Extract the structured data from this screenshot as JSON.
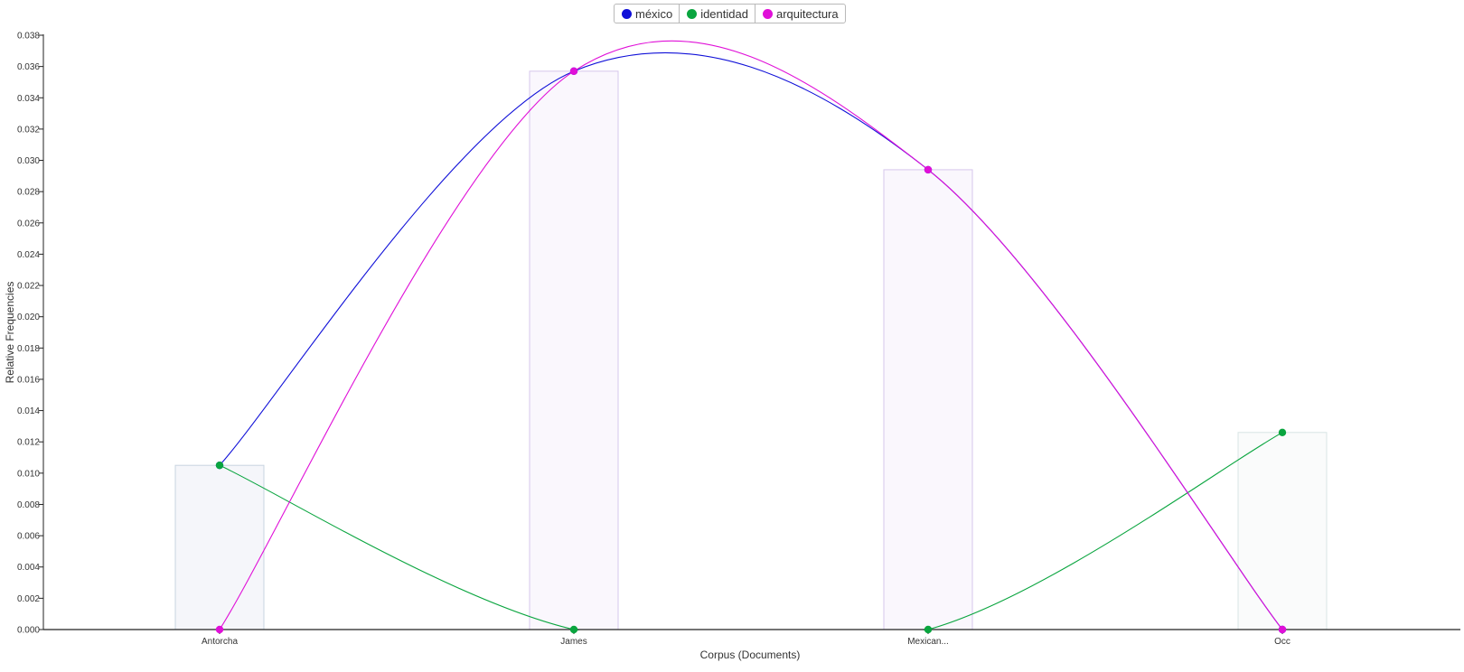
{
  "legend": {
    "items": [
      {
        "label": "méxico",
        "color": "#1010d8"
      },
      {
        "label": "identidad",
        "color": "#0aa53f"
      },
      {
        "label": "arquitectura",
        "color": "#e010d8"
      }
    ]
  },
  "chart_data": {
    "type": "line",
    "categories": [
      "Antorcha",
      "James",
      "Mexican...",
      "Occ"
    ],
    "series": [
      {
        "name": "méxico",
        "color": "#1010d8",
        "values": [
          0.0105,
          0.0357,
          0.0294,
          0.0
        ]
      },
      {
        "name": "identidad",
        "color": "#0aa53f",
        "values": [
          0.0105,
          0.0,
          0.0,
          0.0126
        ]
      },
      {
        "name": "arquitectura",
        "color": "#e010d8",
        "values": [
          0.0,
          0.0357,
          0.0294,
          0.0
        ]
      }
    ],
    "bars": {
      "values": [
        0.0105,
        0.0357,
        0.0294,
        0.0126
      ],
      "colors": [
        "#f5f6fa",
        "#faf7fd",
        "#faf7fd",
        "#fafbfb"
      ],
      "strokes": [
        "#c8d4e0",
        "#d6c7ec",
        "#d6c7ec",
        "#d8e4e4"
      ]
    },
    "xlabel": "Corpus (Documents)",
    "ylabel": "Relative Frequencies",
    "ylim": [
      0,
      0.038
    ],
    "yticks": [
      "0.000",
      "0.002",
      "0.004",
      "0.006",
      "0.008",
      "0.010",
      "0.012",
      "0.014",
      "0.016",
      "0.018",
      "0.020",
      "0.022",
      "0.024",
      "0.026",
      "0.028",
      "0.030",
      "0.032",
      "0.034",
      "0.036",
      "0.038"
    ],
    "grid": false,
    "legend_position": "top-center"
  }
}
